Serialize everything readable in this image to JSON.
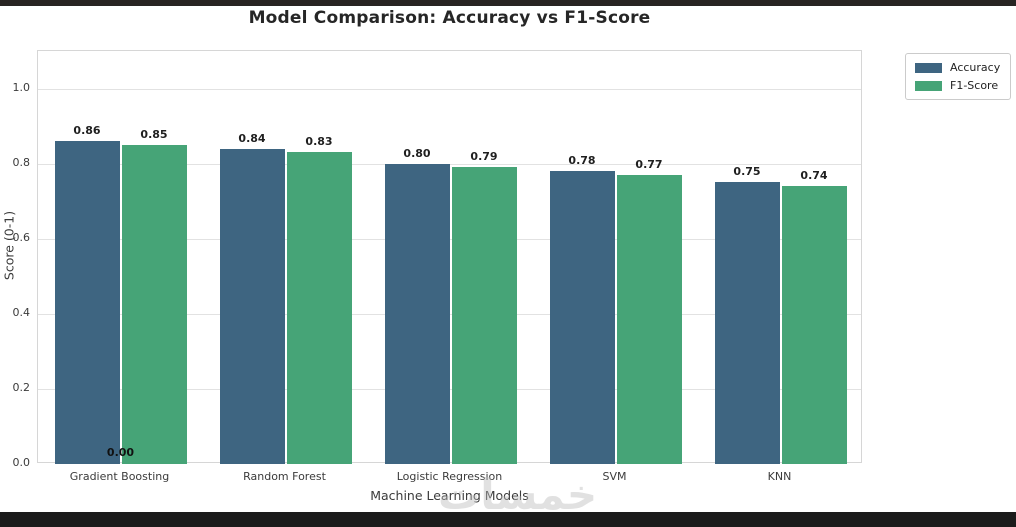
{
  "title": "Model Comparison: Accuracy vs F1-Score",
  "watermark_text": "خمسات",
  "chart_data": {
    "type": "bar",
    "title": "Model Comparison: Accuracy vs F1-Score",
    "categories": [
      "Gradient Boosting",
      "Random Forest",
      "Logistic Regression",
      "SVM",
      "KNN"
    ],
    "series": [
      {
        "name": "Accuracy",
        "color": "#3e6581",
        "values": [
          0.86,
          0.84,
          0.8,
          0.78,
          0.75
        ]
      },
      {
        "name": "F1-Score",
        "color": "#46a477",
        "values": [
          0.85,
          0.83,
          0.79,
          0.77,
          0.74
        ]
      }
    ],
    "bar_value_labels": [
      [
        "0.86",
        "0.84",
        "0.80",
        "0.78",
        "0.75"
      ],
      [
        "0.85",
        "0.83",
        "0.79",
        "0.77",
        "0.74"
      ]
    ],
    "annotation": {
      "text": "0.00",
      "category_index": 0
    },
    "xlabel": "Machine Learning Models",
    "ylabel": "Score (0-1)",
    "ylim": [
      0,
      1.1
    ],
    "ytick_labels": [
      "0.0",
      "0.2",
      "0.4",
      "0.6",
      "0.8",
      "1.0"
    ],
    "grid": true,
    "legend": {
      "position": "upper-right-outside"
    }
  }
}
